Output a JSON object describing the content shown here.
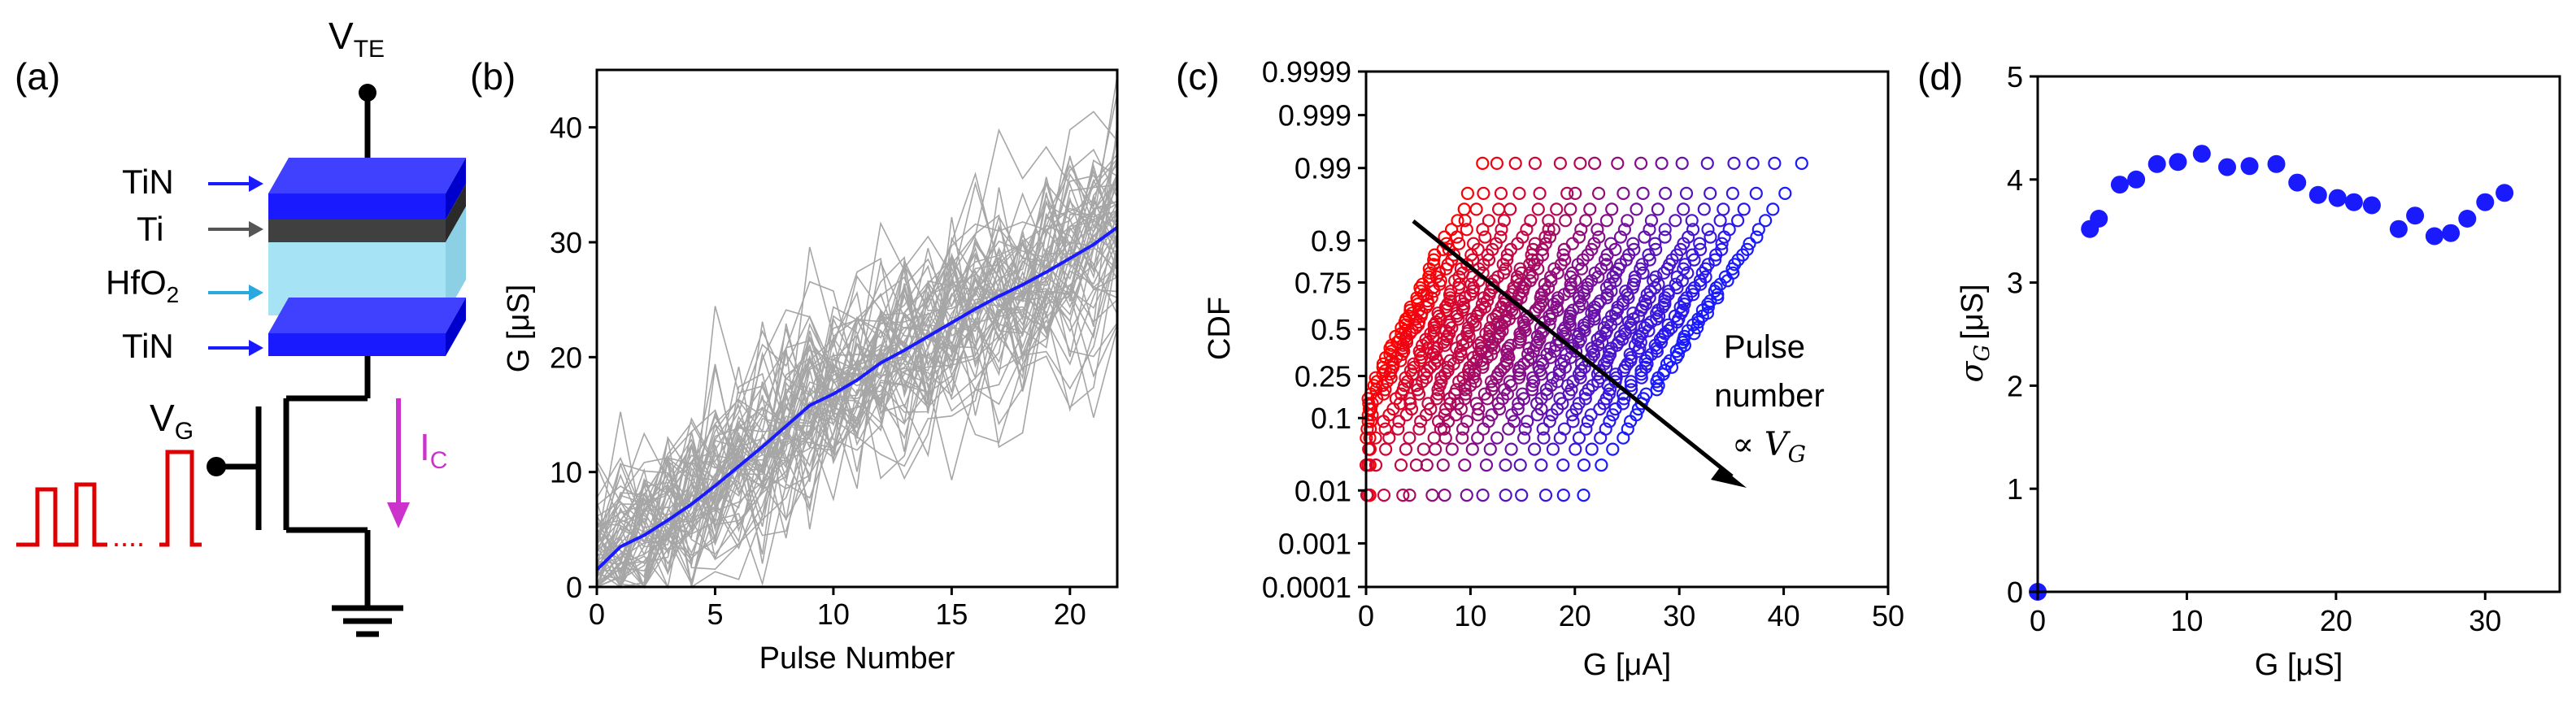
{
  "panels": {
    "a": {
      "label": "(a)"
    },
    "b": {
      "label": "(b)"
    },
    "c": {
      "label": "(c)"
    },
    "d": {
      "label": "(d)"
    }
  },
  "device": {
    "vte_main": "V",
    "vte_sub": "TE",
    "layers": {
      "tin_top": "TiN",
      "ti": "Ti",
      "hfo2_main": "HfO",
      "hfo2_sub": "2",
      "tin_bottom": "TiN"
    },
    "vg_main": "V",
    "vg_sub": "G",
    "ic_main": "I",
    "ic_sub": "C",
    "dots": "....",
    "colors": {
      "tin": "#1a1aff",
      "ti": "#404040",
      "hfo2": "#a6e3f5",
      "pulse": "#dd0000",
      "current": "#cc33cc"
    }
  },
  "chart_data": [
    {
      "id": "b",
      "type": "line",
      "xlabel": "Pulse Number",
      "ylabel": "G [μS]",
      "xlim": [
        0,
        22
      ],
      "ylim": [
        0,
        45
      ],
      "xticks": [
        0,
        5,
        10,
        15,
        20
      ],
      "yticks": [
        0,
        10,
        20,
        30,
        40
      ],
      "series_note": "gray: individual device traces; blue: mean",
      "mean": {
        "name": "mean",
        "x": [
          0,
          1,
          2,
          3,
          4,
          5,
          6,
          7,
          8,
          9,
          10,
          11,
          12,
          13,
          14,
          15,
          16,
          17,
          18,
          19,
          20,
          21,
          22
        ],
        "y": [
          1.5,
          3.5,
          4.5,
          5.8,
          7.2,
          8.8,
          10.5,
          12.2,
          14.0,
          15.8,
          16.8,
          18.0,
          19.5,
          20.6,
          21.8,
          23.0,
          24.2,
          25.3,
          26.3,
          27.4,
          28.6,
          29.8,
          31.3
        ],
        "color": "#1a1aff"
      },
      "traces": {
        "count": 60,
        "spread": 5.2,
        "color": "#a6a6a6"
      }
    },
    {
      "id": "c",
      "type": "scatter",
      "xlabel": "G [μA]",
      "ylabel": "CDF",
      "xlim": [
        0,
        50
      ],
      "xticks": [
        0,
        10,
        20,
        30,
        40,
        50
      ],
      "yticks": [
        "0.0001",
        "0.001",
        "0.01",
        "0.1",
        "0.25",
        "0.5",
        "0.75",
        "0.9",
        "0.99",
        "0.999",
        "0.9999"
      ],
      "y_scale": "normal probability",
      "series_note": "CDF of conductance for each pulse number, red (low pulse) to blue (high pulse)",
      "distributions": {
        "pulse_count": 16,
        "means": [
          3.5,
          4.5,
          6.5,
          8.0,
          10.0,
          12.0,
          13.0,
          15.0,
          17.0,
          19.0,
          21.0,
          23.0,
          25.0,
          27.0,
          29.0,
          31.3
        ],
        "std_dev": 3.8,
        "color_start": "#ff0000",
        "color_end": "#1a1aff"
      },
      "annotation": {
        "line1": "Pulse",
        "line2": "number",
        "line3": "∝ V",
        "line3_sub": "G"
      }
    },
    {
      "id": "d",
      "type": "scatter",
      "xlabel": "G [μS]",
      "ylabel": "σG [μS]",
      "ylabel_main": "σ",
      "ylabel_sub": "G",
      "ylabel_unit": "[μS]",
      "xlim": [
        0,
        35
      ],
      "ylim": [
        0,
        5
      ],
      "xticks": [
        0,
        10,
        20,
        30
      ],
      "yticks": [
        0,
        1,
        2,
        3,
        4,
        5
      ],
      "x": [
        0.0,
        3.5,
        4.1,
        5.5,
        6.6,
        8.0,
        9.4,
        11.0,
        12.7,
        14.2,
        16.0,
        17.4,
        18.8,
        20.1,
        21.2,
        22.4,
        24.2,
        25.3,
        26.6,
        27.7,
        28.8,
        30.0,
        31.3
      ],
      "y": [
        0.0,
        3.52,
        3.62,
        3.95,
        4.0,
        4.15,
        4.17,
        4.25,
        4.12,
        4.13,
        4.15,
        3.97,
        3.85,
        3.82,
        3.78,
        3.75,
        3.52,
        3.65,
        3.45,
        3.48,
        3.62,
        3.78,
        3.87
      ],
      "color": "#1a1aff"
    }
  ]
}
